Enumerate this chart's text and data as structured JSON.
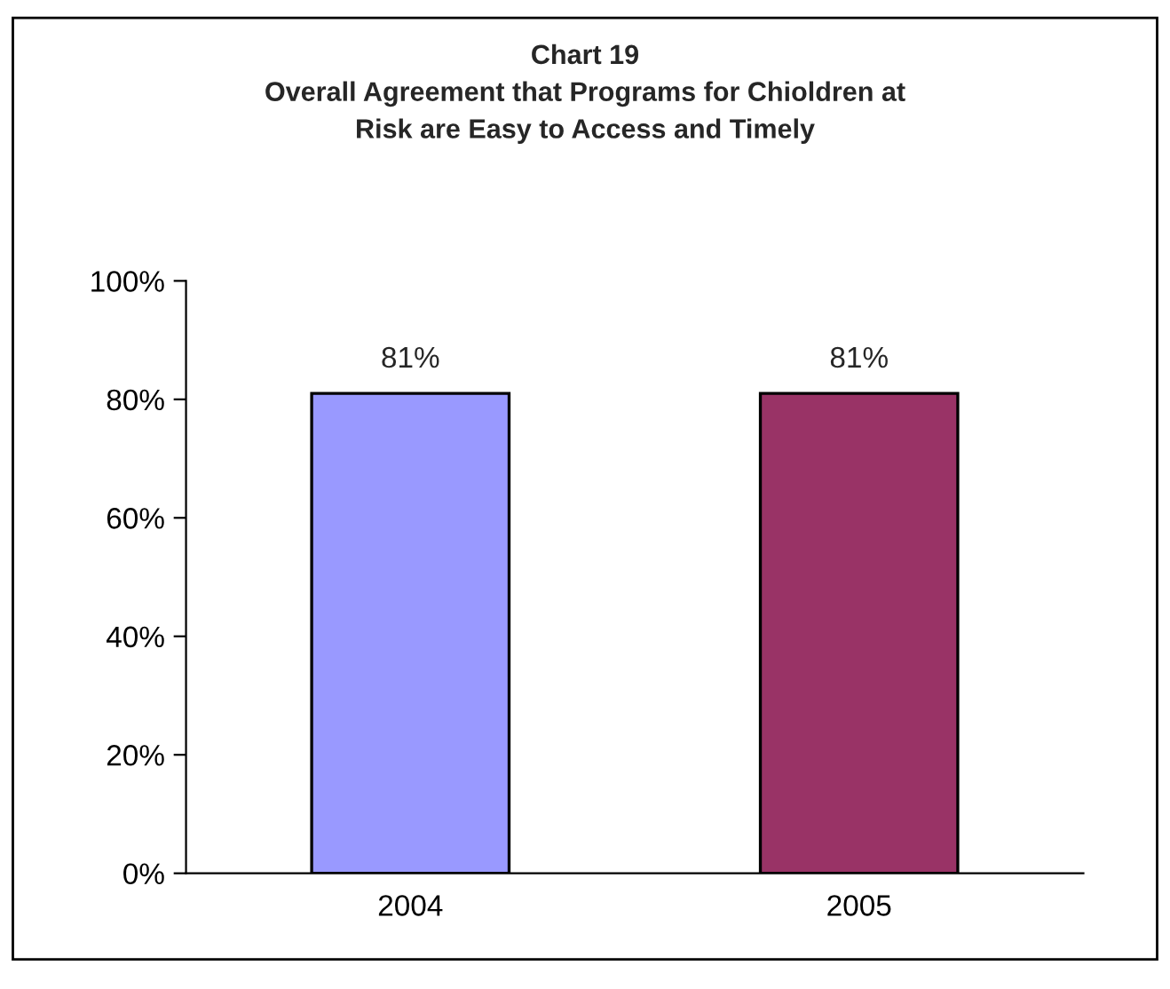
{
  "chart_data": {
    "type": "bar",
    "title": "Chart 19\nOverall Agreement that Programs for Chioldren at\nRisk are Easy to Access and Timely",
    "categories": [
      "2004",
      "2005"
    ],
    "values": [
      81,
      81
    ],
    "colors": [
      "#9999ff",
      "#993366"
    ],
    "value_labels": [
      "81%",
      "81%"
    ],
    "ylim": [
      0,
      100
    ],
    "yticks": [
      {
        "value": 0,
        "label": "0%"
      },
      {
        "value": 20,
        "label": "20%"
      },
      {
        "value": 40,
        "label": "40%"
      },
      {
        "value": 60,
        "label": "60%"
      },
      {
        "value": 80,
        "label": "80%"
      },
      {
        "value": 100,
        "label": "100%"
      }
    ],
    "grid": false,
    "legend": false
  }
}
